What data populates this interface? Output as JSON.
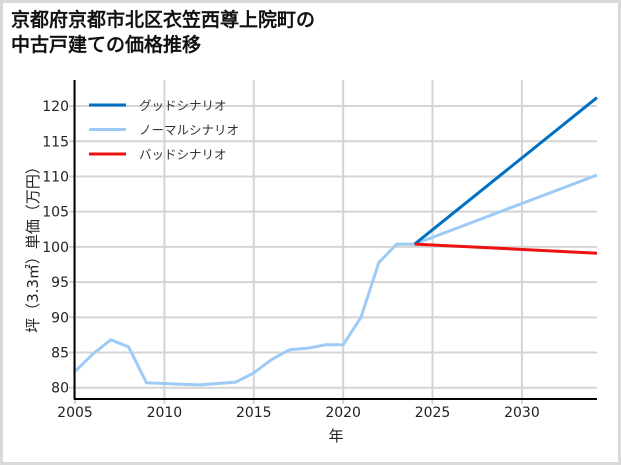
{
  "title": {
    "line1": "京都府京都市北区衣笠西尊上院町の",
    "line2": "中古戸建ての価格推移"
  },
  "chart_data": {
    "type": "line",
    "title": "京都府京都市北区衣笠西尊上院町の中古戸建ての価格推移",
    "xlabel": "年",
    "ylabel": "坪（3.3㎡）単価（万円）",
    "xlim": [
      2005,
      2034.2
    ],
    "ylim": [
      78.4,
      123.7
    ],
    "xticks": [
      2005,
      2010,
      2015,
      2020,
      2025,
      2030
    ],
    "yticks": [
      80,
      85,
      90,
      95,
      100,
      105,
      110,
      115,
      120
    ],
    "grid": true,
    "legend_position": "upper left",
    "series": [
      {
        "name": "グッドシナリオ",
        "color": "#0070c0",
        "x": [
          2024,
          2034.2
        ],
        "y": [
          100.4,
          121.2
        ]
      },
      {
        "name": "ノーマルシナリオ",
        "color": "#9dcbf5",
        "x": [
          2005,
          2006,
          2007,
          2008,
          2009,
          2010,
          2011,
          2012,
          2013,
          2014,
          2015,
          2016,
          2017,
          2018,
          2019,
          2020,
          2021,
          2022,
          2023,
          2024,
          2034.2
        ],
        "y": [
          82.3,
          84.8,
          86.8,
          85.8,
          80.7,
          80.6,
          80.5,
          80.4,
          80.6,
          80.8,
          82.1,
          84.0,
          85.4,
          85.6,
          86.1,
          86.1,
          90.0,
          97.8,
          100.4,
          100.4,
          110.2
        ]
      },
      {
        "name": "バッドシナリオ",
        "color": "#ee1111",
        "x": [
          2024,
          2034.2
        ],
        "y": [
          100.4,
          99.1
        ]
      }
    ]
  }
}
